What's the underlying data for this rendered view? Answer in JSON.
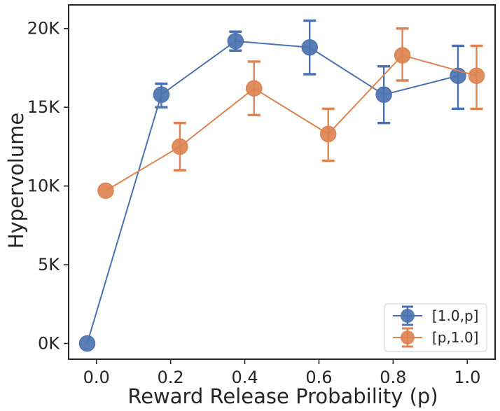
{
  "chart_data": {
    "type": "line",
    "title": "",
    "xlabel": "Reward Release Probability (p)",
    "ylabel": "Hypervolume",
    "xlim": [
      -0.075,
      1.075
    ],
    "ylim": [
      -1000,
      21500
    ],
    "x_ticks": [
      0.0,
      0.2,
      0.4,
      0.6,
      0.8,
      1.0
    ],
    "x_tick_labels": [
      "0.0",
      "0.2",
      "0.4",
      "0.6",
      "0.8",
      "1.0"
    ],
    "y_ticks": [
      0,
      5000,
      10000,
      15000,
      20000
    ],
    "y_tick_labels": [
      "0K",
      "5K",
      "10K",
      "15K",
      "20K"
    ],
    "legend_position": "bottom-right",
    "series": [
      {
        "name": "[1.0,p]",
        "color": "#4c72b0",
        "x": [
          -0.025,
          0.175,
          0.375,
          0.575,
          0.775,
          0.975
        ],
        "y": [
          0,
          15800,
          19200,
          18800,
          15800,
          17000
        ],
        "err_low": [
          0,
          15000,
          18600,
          17100,
          14000,
          14900
        ],
        "err_high": [
          0,
          16500,
          19800,
          20500,
          17600,
          18900
        ]
      },
      {
        "name": "[p,1.0]",
        "color": "#dd8452",
        "x": [
          0.025,
          0.225,
          0.425,
          0.625,
          0.825,
          1.025
        ],
        "y": [
          9700,
          12500,
          16200,
          13300,
          18300,
          17000
        ],
        "err_low": [
          9700,
          11000,
          14500,
          11600,
          16700,
          14900
        ],
        "err_high": [
          9700,
          14000,
          17900,
          14900,
          20000,
          18900
        ]
      }
    ]
  }
}
